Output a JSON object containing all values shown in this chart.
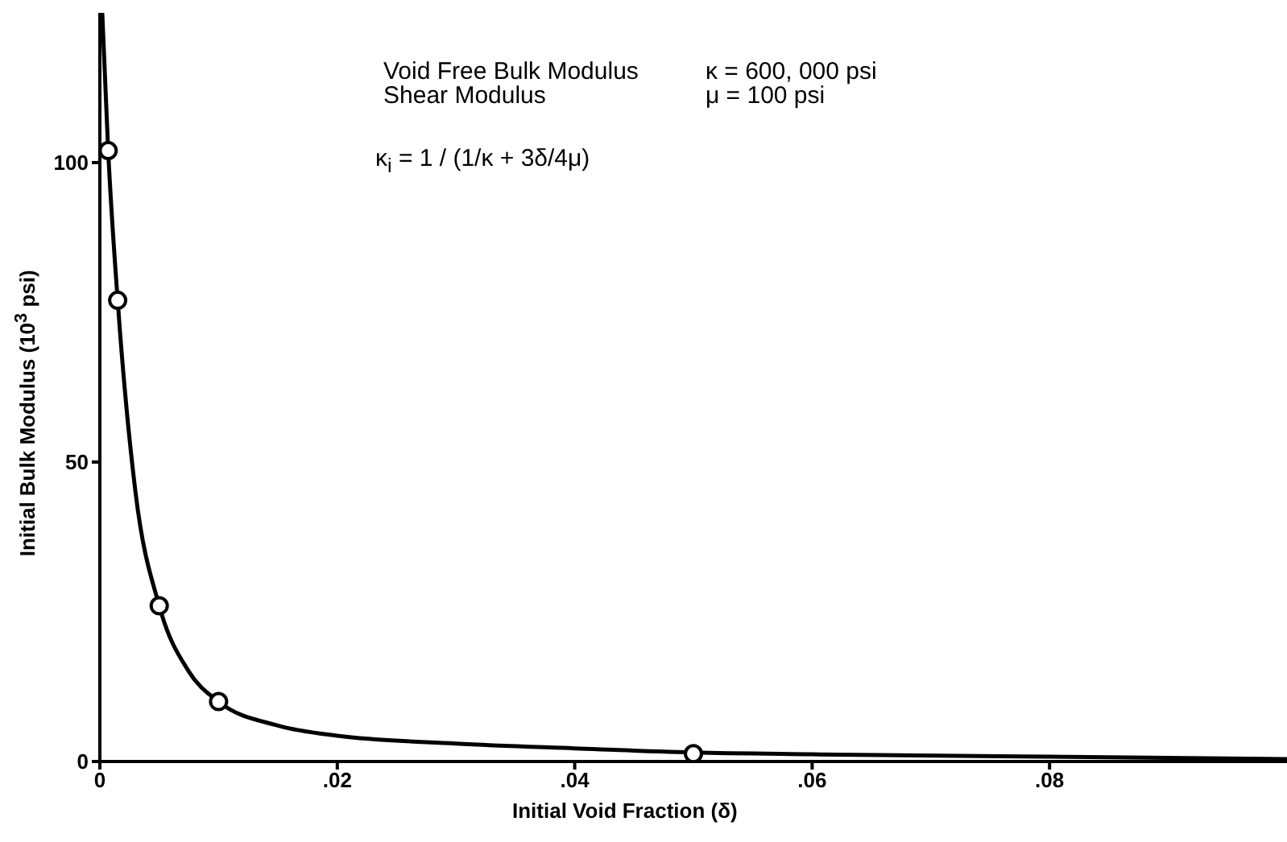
{
  "chart_data": {
    "type": "scatter",
    "xlabel": "Initial Void Fraction (δ)",
    "ylabel": "Initial Bulk Modulus (10$^{3}$ psi)",
    "xlim": [
      0,
      0.1
    ],
    "xticks": [
      0,
      {
        "value": 0.02,
        "label": ".02"
      },
      {
        "value": 0.04,
        "label": ".04"
      },
      {
        "value": 0.06,
        "label": ".06"
      },
      {
        "value": 0.08,
        "label": ".08"
      }
    ],
    "ylim": [
      0,
      125
    ],
    "yticks": [
      0,
      50,
      100
    ],
    "marker": "circle",
    "series": [
      {
        "type": "line",
        "color": "#000000",
        "marker": "none",
        "line_style": "solid",
        "x": [
          0.0002,
          0.0007,
          0.0015,
          0.003,
          0.005,
          0.0075,
          0.01,
          0.015,
          0.02,
          0.03,
          0.04,
          0.05,
          0.06,
          0.08,
          0.1
        ],
        "values": [
          125,
          102,
          77,
          45,
          26,
          15,
          10,
          6,
          4.3,
          3,
          2.2,
          1.5,
          1.2,
          0.8,
          0.4
        ]
      },
      {
        "color": "#000000",
        "x": [
          0.0007,
          0.0015,
          0.005,
          0.01,
          0.05
        ],
        "values": [
          102,
          77,
          26,
          10,
          1.3
        ]
      }
    ],
    "annotations": [
      "Void Free Bulk Modulus",
      "κ  =  600, 000 psi",
      "Shear Modulus",
      "μ  =  100 psi",
      "κ$_{i}$  =  1 / (1/κ + 3δ/4μ)"
    ]
  }
}
